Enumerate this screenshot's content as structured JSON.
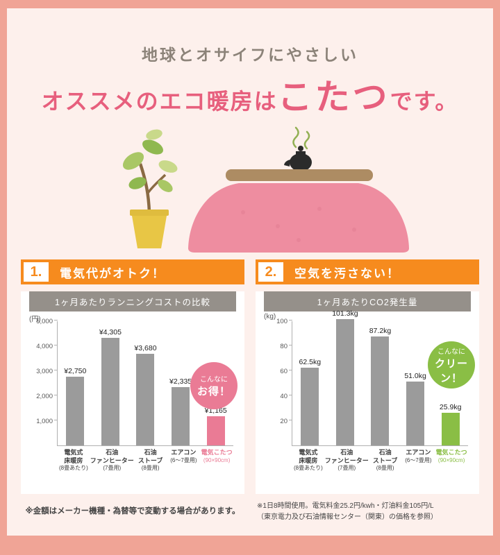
{
  "colors": {
    "border_salmon": "#f0a496",
    "background_pink": "#fdf0ec",
    "accent_orange": "#f68b1e",
    "title_pink": "#e75f7d",
    "chart_header_gray": "#95908a",
    "bar_gray": "#9b9b9b",
    "bar_pink": "#ea7b95",
    "bar_green": "#8abe45"
  },
  "header": {
    "subtitle": "地球とオサイフにやさしい",
    "title_prefix": "オススメのエコ暖房は",
    "title_highlight": "こたつ",
    "title_suffix": "です。"
  },
  "illustration": {
    "plant_icon": "potted-plant",
    "kotatsu_icon": "kotatsu-table-with-kettle"
  },
  "sections": [
    {
      "number": "1.",
      "heading": "電気代がオトク！",
      "badge_line1": "こんなに",
      "badge_line2": "お得！",
      "footnote": "※金額はメーカー機種・為替等で変動する場合があります。"
    },
    {
      "number": "2.",
      "heading": "空気を汚さない！",
      "badge_line1": "こんなに",
      "badge_line2": "クリーン！",
      "footnote": "※1日8時間使用。電気料金25.2円/kwh・灯油料金105円/L\n（東京電力及び石油情報センター（関東）の価格を参照）"
    }
  ],
  "chart_data": [
    {
      "type": "bar",
      "title": "1ヶ月あたりランニングコストの比較",
      "unit": "(円)",
      "categories": [
        {
          "lines": [
            "電気式",
            "床暖房"
          ],
          "sub": "(8畳あたり)"
        },
        {
          "lines": [
            "石油",
            "ファンヒーター"
          ],
          "sub": "(7畳用)"
        },
        {
          "lines": [
            "石油",
            "ストーブ"
          ],
          "sub": "(8畳用)"
        },
        {
          "lines": [
            "エアコン"
          ],
          "sub": "(6〜7畳用)"
        },
        {
          "lines": [
            "電気こたつ"
          ],
          "sub": "(90×90cm)"
        }
      ],
      "values": [
        2750,
        4305,
        3680,
        2335,
        1165
      ],
      "value_labels": [
        "¥2,750",
        "¥4,305",
        "¥3,680",
        "¥2,335",
        "¥1,165"
      ],
      "ticks": [
        1000,
        2000,
        3000,
        4000,
        5000
      ],
      "tick_labels": [
        "1,000",
        "2,000",
        "3,000",
        "4,000",
        "5,000"
      ],
      "ylim": [
        0,
        5000
      ],
      "ylabel": "円",
      "grid": false,
      "highlight_index": 4,
      "bar_color": "#9b9b9b",
      "highlight_color": "#ea7b95"
    },
    {
      "type": "bar",
      "title": "1ヶ月あたりCO2発生量",
      "unit": "(kg)",
      "categories": [
        {
          "lines": [
            "電気式",
            "床暖房"
          ],
          "sub": "(8畳あたり)"
        },
        {
          "lines": [
            "石油",
            "ファンヒーター"
          ],
          "sub": "(7畳用)"
        },
        {
          "lines": [
            "石油",
            "ストーブ"
          ],
          "sub": "(8畳用)"
        },
        {
          "lines": [
            "エアコン"
          ],
          "sub": "(6〜7畳用)"
        },
        {
          "lines": [
            "電気こたつ"
          ],
          "sub": "(90×90cm)"
        }
      ],
      "values": [
        62.5,
        101.3,
        87.2,
        51.0,
        25.9
      ],
      "value_labels": [
        "62.5kg",
        "101.3kg",
        "87.2kg",
        "51.0kg",
        "25.9kg"
      ],
      "ticks": [
        20,
        40,
        60,
        80,
        100
      ],
      "tick_labels": [
        "20",
        "40",
        "60",
        "80",
        "100"
      ],
      "ylim": [
        0,
        100
      ],
      "ylabel": "kg",
      "grid": false,
      "highlight_index": 4,
      "bar_color": "#9b9b9b",
      "highlight_color": "#8abe45"
    }
  ]
}
